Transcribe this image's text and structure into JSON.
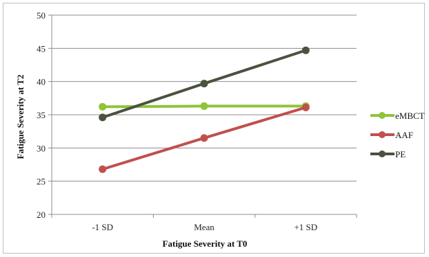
{
  "chart_data": {
    "type": "line",
    "categories": [
      "-1 SD",
      "Mean",
      "+1 SD"
    ],
    "series": [
      {
        "name": "eMBCT",
        "values": [
          36.2,
          36.3,
          36.3
        ],
        "color": "#8fc43a"
      },
      {
        "name": "AAF",
        "values": [
          26.8,
          31.5,
          36.1
        ],
        "color": "#c0504d"
      },
      {
        "name": "PE",
        "values": [
          34.6,
          39.7,
          44.7
        ],
        "color": "#4a5240"
      }
    ],
    "title": "",
    "xlabel": "Fatigue Severity at T0",
    "ylabel": "Fatigue Severity at T2",
    "ylim": [
      20,
      50
    ],
    "yticks": [
      20,
      25,
      30,
      35,
      40,
      45,
      50
    ],
    "grid": true,
    "legend": "right"
  }
}
